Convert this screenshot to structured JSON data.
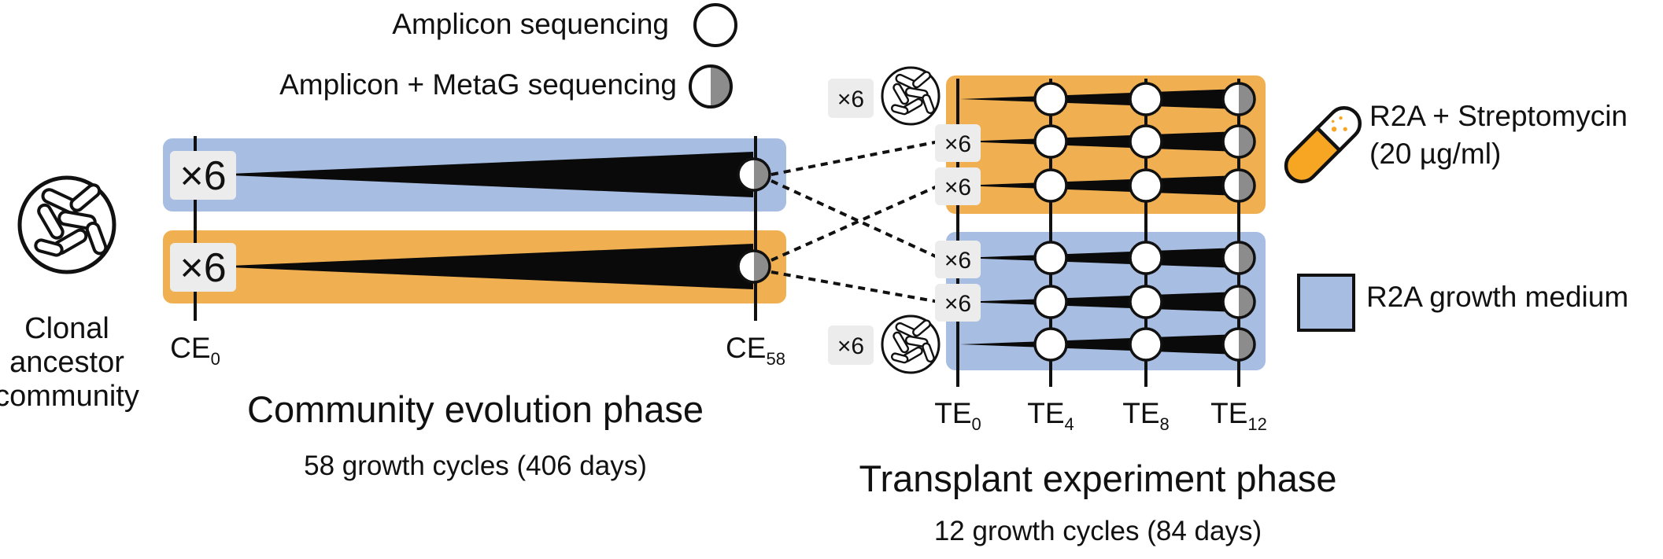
{
  "legend": {
    "amplicon": "Amplicon sequencing",
    "amplicon_metag": "Amplicon + MetaG sequencing"
  },
  "ancestor": {
    "line1": "Clonal",
    "line2": "ancestor",
    "line3": "community"
  },
  "evolution_phase": {
    "title": "Community evolution phase",
    "subtitle": "58 growth cycles (406 days)",
    "start_base": "CE",
    "start_sub": "0",
    "end_base": "CE",
    "end_sub": "58",
    "replicate_label": "×6"
  },
  "transplant_phase": {
    "title": "Transplant experiment phase",
    "subtitle": "12 growth cycles (84 days)",
    "replicate_label": "×6",
    "timepoints": [
      {
        "base": "TE",
        "sub": "0"
      },
      {
        "base": "TE",
        "sub": "4"
      },
      {
        "base": "TE",
        "sub": "8"
      },
      {
        "base": "TE",
        "sub": "12"
      }
    ]
  },
  "media": {
    "strep_line1": "R2A + Streptomycin",
    "strep_line2": "(20 µg/ml)",
    "r2a": "R2A growth medium"
  },
  "colors": {
    "r2a_blue": "#a8bde2",
    "strep_orange": "#f0b052",
    "wedge": "#0a0a0a",
    "half_grey": "#8c8c8c",
    "label_box": "#ececec"
  },
  "icons": {
    "amplicon_marker": "open-circle-icon",
    "metag_marker": "half-grey-circle-icon",
    "ancestor": "bacteria-community-icon",
    "strep": "pill-capsule-icon",
    "r2a": "blue-square-icon"
  }
}
